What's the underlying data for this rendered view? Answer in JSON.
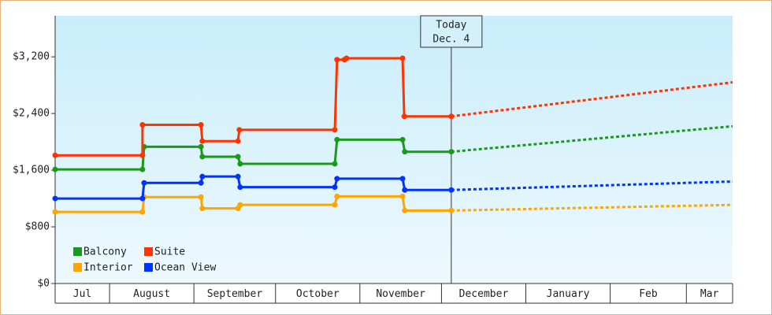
{
  "chart_data": {
    "type": "line",
    "categories": [
      "Jul",
      "August",
      "September",
      "October",
      "November",
      "December",
      "January",
      "Feb",
      "Mar"
    ],
    "xticks": [
      0,
      20,
      51,
      81,
      112,
      142,
      173,
      204,
      232,
      249
    ],
    "xlim": [
      0,
      249
    ],
    "ylim": [
      0,
      3780
    ],
    "yticks": [
      {
        "value": 0,
        "label": "$0"
      },
      {
        "value": 800,
        "label": "$800"
      },
      {
        "value": 1600,
        "label": "$1,600"
      },
      {
        "value": 2400,
        "label": "$2,400"
      },
      {
        "value": 3200,
        "label": "$3,200"
      }
    ],
    "annotation": {
      "lines": [
        "Today",
        "Dec. 4"
      ],
      "x": 145.6
    },
    "legend": "lower left",
    "series": [
      {
        "name": "Balcony",
        "color": "#1a9a1a",
        "x": [
          0,
          32.1,
          32.7,
          53.6,
          54.1,
          67.2,
          68,
          102.8,
          103.6,
          127.7,
          128.5,
          145.6,
          249
        ],
        "values": [
          1610,
          1610,
          1930,
          1930,
          1790,
          1790,
          1690,
          1690,
          2030,
          2030,
          1860,
          1860,
          2220
        ]
      },
      {
        "name": "Suite",
        "color": "#ff3300",
        "x": [
          0,
          32.1,
          32.1,
          53.6,
          54.1,
          67.2,
          67.7,
          102.8,
          103.6,
          106.3,
          107.1,
          127.7,
          128.3,
          145.6,
          249
        ],
        "values": [
          1810,
          1810,
          2240,
          2240,
          2010,
          2010,
          2170,
          2170,
          3160,
          3160,
          3180,
          3180,
          2360,
          2360,
          2840
        ]
      },
      {
        "name": "Interior",
        "color": "#ffa500",
        "x": [
          0,
          32.1,
          32.7,
          53.6,
          54.1,
          67.2,
          68,
          102.8,
          103.6,
          127.7,
          128.5,
          145.6,
          249
        ],
        "values": [
          1010,
          1010,
          1220,
          1220,
          1060,
          1060,
          1110,
          1110,
          1230,
          1230,
          1030,
          1030,
          1110
        ]
      },
      {
        "name": "Ocean View",
        "color": "#0033ff",
        "x": [
          0,
          32.1,
          32.7,
          53.6,
          54.1,
          67.2,
          68,
          102.8,
          103.6,
          127.7,
          128.5,
          145.6,
          249
        ],
        "values": [
          1200,
          1200,
          1420,
          1420,
          1510,
          1510,
          1360,
          1360,
          1480,
          1480,
          1320,
          1320,
          1440
        ]
      }
    ]
  }
}
